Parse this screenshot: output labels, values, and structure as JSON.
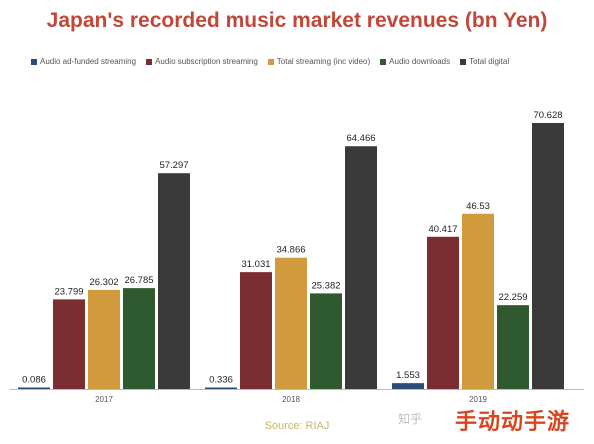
{
  "chart_data": {
    "type": "bar",
    "title": "Japan's recorded music market revenues (bn Yen)",
    "categories": [
      "2017",
      "2018",
      "2019"
    ],
    "series": [
      {
        "name": "Audio ad-funded streaming",
        "color": "#2e4a76",
        "values": [
          0.086,
          0.336,
          1.553
        ]
      },
      {
        "name": "Audio subscription streaming",
        "color": "#7a2e31",
        "values": [
          23.799,
          31.031,
          40.417
        ]
      },
      {
        "name": "Total streaming (inc video)",
        "color": "#d19a3c",
        "values": [
          26.302,
          34.866,
          46.53
        ]
      },
      {
        "name": "Audio downloads",
        "color": "#2f5a2f",
        "values": [
          26.785,
          25.382,
          22.259
        ]
      },
      {
        "name": "Total digital",
        "color": "#3a3a3a",
        "values": [
          57.297,
          64.466,
          70.628
        ]
      }
    ],
    "value_labels": [
      [
        "0.086",
        "23.799",
        "26.302",
        "26.785",
        "57.297"
      ],
      [
        "0.336",
        "31.031",
        "34.866",
        "25.382",
        "64.466"
      ],
      [
        "1.553",
        "40.417",
        "46.53",
        "22.259",
        "70.628"
      ]
    ],
    "ylim": [
      0,
      75
    ],
    "grid": false,
    "legend": "top"
  },
  "source": "Source: RIAJ",
  "watermark": "手动动手游",
  "watermark_small": "知乎"
}
